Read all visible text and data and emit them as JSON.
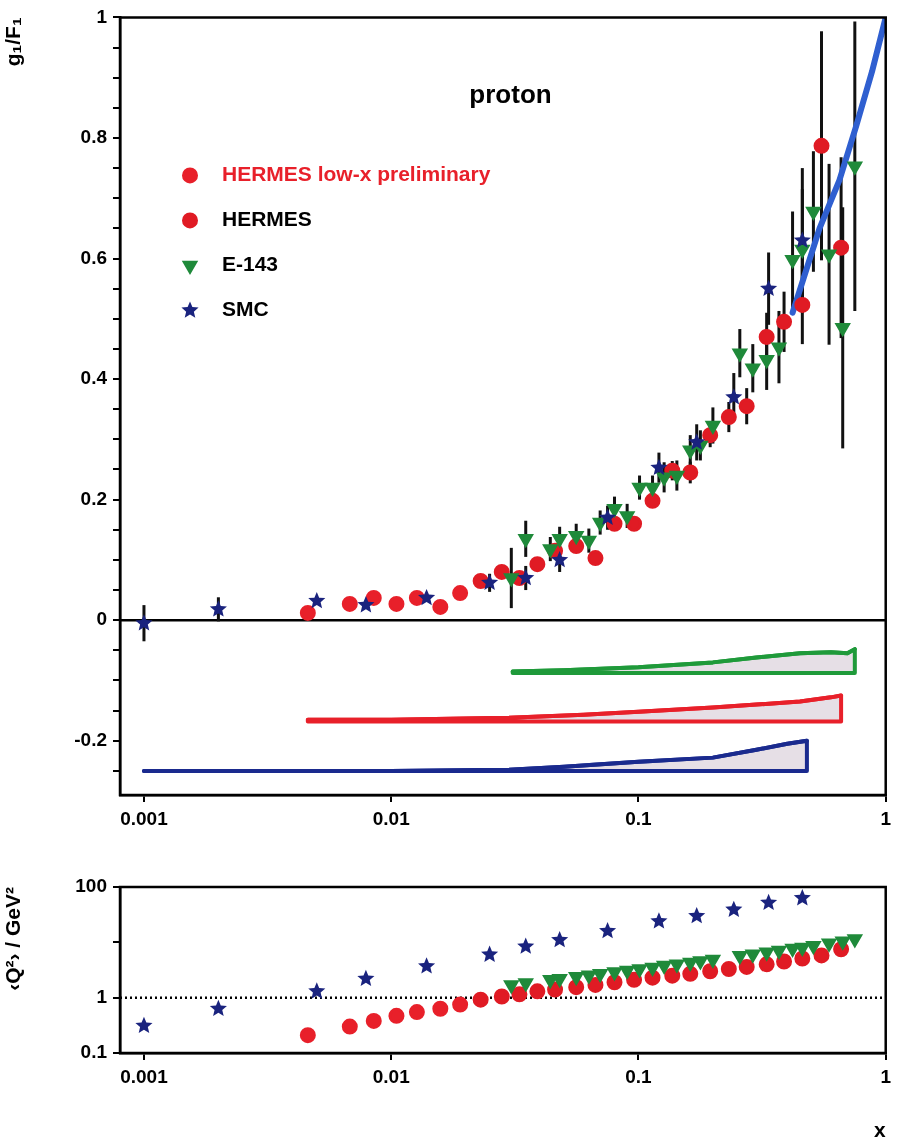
{
  "chart_data": [
    {
      "type": "scatter",
      "ylabel": "g₁/F₁",
      "annotations": [
        "proton"
      ],
      "log": "x",
      "legend": "top left",
      "grid": false,
      "xlim": [
        0.0008,
        1
      ],
      "xticks": [
        0.001,
        0.01,
        0.1,
        1
      ],
      "ylim": [
        -0.29,
        1
      ],
      "yticks": [
        {
          "value": -0.25,
          "label": null
        },
        -0.2,
        {
          "value": -0.15,
          "label": null
        },
        {
          "value": -0.1,
          "label": null
        },
        {
          "value": -0.05,
          "label": null
        },
        0,
        {
          "value": 0.05,
          "label": null
        },
        {
          "value": 0.1,
          "label": null
        },
        {
          "value": 0.15,
          "label": null
        },
        0.2,
        {
          "value": 0.25,
          "label": null
        },
        {
          "value": 0.3,
          "label": null
        },
        {
          "value": 0.35,
          "label": null
        },
        0.4,
        {
          "value": 0.45,
          "label": null
        },
        {
          "value": 0.5,
          "label": null
        },
        {
          "value": 0.55,
          "label": null
        },
        0.6,
        {
          "value": 0.65,
          "label": null
        },
        {
          "value": 0.7,
          "label": null
        },
        {
          "value": 0.75,
          "label": null
        },
        0.8,
        {
          "value": 0.85,
          "label": null
        },
        {
          "value": 0.9,
          "label": null
        },
        {
          "value": 0.95,
          "label": null
        },
        1
      ],
      "ref_lines": [
        {
          "axis": "y",
          "value": 0,
          "color": "#000000",
          "line_style": "solid"
        }
      ],
      "series": [
        {
          "name": "HERMES low-x preliminary",
          "color": "#e8202a",
          "marker": "circle",
          "x": [
            0.0046,
            0.0068,
            0.0085,
            0.0105,
            0.0127,
            0.0158,
            0.019
          ],
          "values": [
            0.012,
            0.027,
            0.037,
            0.027,
            0.037,
            0.022,
            0.045
          ]
        },
        {
          "name": "HERMES",
          "color": "#e01b24",
          "marker": "circle",
          "x": [
            0.023,
            0.028,
            0.033,
            0.039,
            0.046,
            0.056,
            0.067,
            0.08,
            0.096,
            0.114,
            0.137,
            0.162,
            0.195,
            0.232,
            0.274,
            0.33,
            0.388,
            0.46,
            0.55,
            0.66
          ],
          "values": [
            0.065,
            0.08,
            0.07,
            0.093,
            0.115,
            0.123,
            0.103,
            0.16,
            0.16,
            0.198,
            0.248,
            0.245,
            0.307,
            0.337,
            0.355,
            0.47,
            0.495,
            0.523,
            0.787,
            0.618
          ],
          "errors": [
            0.005,
            null,
            null,
            null,
            null,
            null,
            null,
            null,
            null,
            null,
            0.016,
            0.018,
            0.02,
            0.025,
            0.03,
            0.04,
            0.05,
            0.065,
            0.19,
            0.15
          ]
        },
        {
          "name": "E-143",
          "color": "#1f8a3a",
          "marker": "triangle",
          "x": [
            0.0306,
            0.035,
            0.044,
            0.048,
            0.056,
            0.063,
            0.07,
            0.08,
            0.09,
            0.101,
            0.114,
            0.127,
            0.143,
            0.162,
            0.178,
            0.2,
            0.257,
            0.29,
            0.33,
            0.37,
            0.42,
            0.46,
            0.51,
            0.59,
            0.67,
            0.75
          ],
          "values": [
            0.07,
            0.135,
            0.118,
            0.135,
            0.14,
            0.132,
            0.162,
            0.185,
            0.173,
            0.22,
            0.22,
            0.237,
            0.24,
            0.282,
            0.29,
            0.323,
            0.443,
            0.418,
            0.432,
            0.453,
            0.598,
            0.615,
            0.678,
            0.607,
            0.485,
            0.753
          ],
          "errors": [
            0.05,
            0.03,
            0.02,
            0.02,
            0.02,
            0.02,
            0.02,
            0.02,
            0.02,
            0.02,
            0.02,
            0.025,
            0.025,
            0.025,
            0.025,
            0.03,
            0.04,
            0.04,
            0.05,
            0.06,
            0.08,
            0.1,
            0.1,
            0.15,
            0.2,
            0.24
          ]
        },
        {
          "name": "SMC",
          "color": "#1a237e",
          "marker": "star",
          "x": [
            0.001,
            0.002,
            0.005,
            0.0079,
            0.0139,
            0.025,
            0.035,
            0.048,
            0.075,
            0.121,
            0.172,
            0.243,
            0.336,
            0.46
          ],
          "values": [
            -0.005,
            0.018,
            0.032,
            0.025,
            0.037,
            0.062,
            0.07,
            0.1,
            0.17,
            0.253,
            0.295,
            0.37,
            0.55,
            0.63
          ],
          "errors": [
            0.03,
            0.02,
            null,
            null,
            null,
            0.015,
            0.02,
            0.02,
            0.02,
            0.025,
            0.03,
            0.04,
            0.06,
            0.12
          ]
        },
        {
          "type": "line",
          "color": "#2f5fd0",
          "x": [
            0.42,
            0.54,
            0.65,
            0.76,
            0.88,
            1
          ],
          "values": [
            0.51,
            0.65,
            0.73,
            0.82,
            0.91,
            1
          ]
        },
        {
          "type": "line",
          "color": "#1f9a3a",
          "x": [
            0.031,
            0.05,
            0.1,
            0.2,
            0.3,
            0.45,
            0.6,
            0.7,
            0.75
          ],
          "values": [
            -0.085,
            -0.083,
            -0.078,
            -0.07,
            -0.062,
            -0.055,
            -0.053,
            -0.055,
            -0.048
          ],
          "upper": [
            -0.085,
            -0.083,
            -0.078,
            -0.07,
            -0.062,
            -0.055,
            -0.053,
            -0.055,
            -0.048
          ],
          "lower": [
            -0.0875,
            -0.0875,
            -0.0875,
            -0.0875,
            -0.0875,
            -0.0875,
            -0.0875,
            -0.0875,
            -0.0875
          ]
        },
        {
          "type": "line",
          "color": "#e8202a",
          "x": [
            0.0046,
            0.01,
            0.03,
            0.06,
            0.1,
            0.2,
            0.3,
            0.45,
            0.6,
            0.66
          ],
          "values": [
            -0.165,
            -0.165,
            -0.162,
            -0.157,
            -0.152,
            -0.145,
            -0.14,
            -0.135,
            -0.128,
            -0.125
          ],
          "upper": [
            -0.165,
            -0.165,
            -0.162,
            -0.157,
            -0.152,
            -0.145,
            -0.14,
            -0.135,
            -0.128,
            -0.125
          ],
          "lower": [
            -0.168,
            -0.168,
            -0.168,
            -0.168,
            -0.168,
            -0.168,
            -0.168,
            -0.168,
            -0.168,
            -0.168
          ]
        },
        {
          "type": "line",
          "color": "#1a2a8e",
          "x": [
            0.001,
            0.01,
            0.03,
            0.05,
            0.1,
            0.2,
            0.3,
            0.4,
            0.48
          ],
          "values": [
            -0.25,
            -0.25,
            -0.248,
            -0.243,
            -0.235,
            -0.228,
            -0.215,
            -0.205,
            -0.2
          ],
          "upper": [
            -0.25,
            -0.25,
            -0.248,
            -0.243,
            -0.235,
            -0.228,
            -0.215,
            -0.205,
            -0.2
          ],
          "lower": [
            -0.25,
            -0.25,
            -0.25,
            -0.25,
            -0.25,
            -0.25,
            -0.25,
            -0.25,
            -0.25
          ]
        }
      ]
    },
    {
      "type": "scatter",
      "xlabel": "x",
      "ylabel": "‹Q²› / GeV²",
      "log": "xy",
      "grid": false,
      "xlim": [
        0.0008,
        1
      ],
      "xticks": [
        0.001,
        0.01,
        0.1,
        1
      ],
      "ylim": [
        0.1,
        100
      ],
      "yticks": [
        0.1,
        1,
        {
          "value": 10,
          "label": null
        },
        100
      ],
      "ref_lines": [
        {
          "axis": "y",
          "value": 1,
          "color": "#000000",
          "line_style": "dotted"
        }
      ],
      "series": [
        {
          "color": "#e8202a",
          "marker": "circle",
          "x": [
            0.0046,
            0.0068,
            0.0085,
            0.0105,
            0.0127,
            0.0158,
            0.019
          ],
          "values": [
            0.21,
            0.3,
            0.38,
            0.47,
            0.55,
            0.63,
            0.75
          ]
        },
        {
          "color": "#e01b24",
          "marker": "circle",
          "x": [
            0.023,
            0.028,
            0.033,
            0.039,
            0.046,
            0.056,
            0.067,
            0.08,
            0.096,
            0.114,
            0.137,
            0.162,
            0.195,
            0.232,
            0.274,
            0.33,
            0.388,
            0.46,
            0.55,
            0.66
          ],
          "values": [
            0.92,
            1.05,
            1.15,
            1.3,
            1.4,
            1.55,
            1.7,
            1.9,
            2.1,
            2.3,
            2.5,
            2.7,
            3,
            3.3,
            3.6,
            4,
            4.5,
            5.1,
            5.8,
            7.5
          ]
        },
        {
          "color": "#1f8a3a",
          "marker": "triangle",
          "x": [
            0.0306,
            0.035,
            0.044,
            0.048,
            0.056,
            0.063,
            0.07,
            0.08,
            0.09,
            0.101,
            0.114,
            0.127,
            0.143,
            0.162,
            0.178,
            0.2,
            0.257,
            0.29,
            0.33,
            0.37,
            0.42,
            0.46,
            0.51,
            0.59,
            0.67,
            0.75
          ],
          "values": [
            1.7,
            1.85,
            2.1,
            2.2,
            2.4,
            2.55,
            2.7,
            2.9,
            3.1,
            3.3,
            3.5,
            3.8,
            4,
            4.3,
            4.6,
            4.9,
            5.7,
            6.1,
            6.6,
            7.1,
            7.7,
            8.1,
            8.7,
            9.6,
            10.5,
            11.5
          ]
        },
        {
          "color": "#1a237e",
          "marker": "star",
          "x": [
            0.001,
            0.002,
            0.005,
            0.0079,
            0.0139,
            0.025,
            0.035,
            0.048,
            0.075,
            0.121,
            0.172,
            0.243,
            0.336,
            0.46
          ],
          "values": [
            0.31,
            0.63,
            1.3,
            2.2,
            3.7,
            6,
            8.4,
            11,
            16,
            24,
            30,
            39,
            52,
            63
          ]
        }
      ]
    }
  ]
}
